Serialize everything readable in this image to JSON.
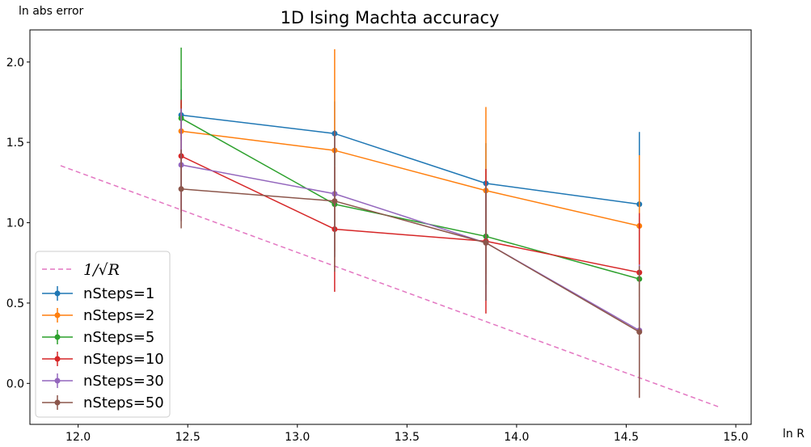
{
  "chart_data": {
    "type": "line",
    "title": "1D Ising Machta accuracy",
    "xlabel": "ln R",
    "ylabel": "ln abs error",
    "xlim": [
      11.78,
      15.07
    ],
    "ylim": [
      -0.255,
      2.2
    ],
    "xticks": [
      "12.0",
      "12.5",
      "13.0",
      "13.5",
      "14.0",
      "14.5",
      "15.0"
    ],
    "xtick_values": [
      12.0,
      12.5,
      13.0,
      13.5,
      14.0,
      14.5,
      15.0
    ],
    "yticks": [
      "0.0",
      "0.5",
      "1.0",
      "1.5",
      "2.0"
    ],
    "ytick_values": [
      0.0,
      0.5,
      1.0,
      1.5,
      2.0
    ],
    "legend_position": "lower-left",
    "reference_line": {
      "name": "1/√R",
      "color": "#e377c2",
      "x": [
        11.92,
        14.92
      ],
      "y": [
        1.355,
        -0.145
      ]
    },
    "x": [
      12.47,
      13.17,
      13.86,
      14.56
    ],
    "series": [
      {
        "name": "nSteps=1",
        "color": "#1f77b4",
        "y": [
          1.67,
          1.555,
          1.245,
          1.115
        ],
        "err": [
          0.16,
          0.2,
          0.25,
          0.45
        ]
      },
      {
        "name": "nSteps=2",
        "color": "#ff7f0e",
        "y": [
          1.57,
          1.45,
          1.2,
          0.98
        ],
        "err": [
          0.18,
          0.63,
          0.52,
          0.44
        ]
      },
      {
        "name": "nSteps=5",
        "color": "#2ca02c",
        "y": [
          1.65,
          1.115,
          0.915,
          0.65
        ],
        "err": [
          0.44,
          0.33,
          0.3,
          0.38
        ]
      },
      {
        "name": "nSteps=10",
        "color": "#d62728",
        "y": [
          1.415,
          0.96,
          0.885,
          0.69
        ],
        "err": [
          0.35,
          0.39,
          0.45,
          0.37
        ]
      },
      {
        "name": "nSteps=30",
        "color": "#9467bd",
        "y": [
          1.36,
          1.18,
          0.875,
          0.33
        ],
        "err": [
          0.35,
          0.39,
          0.36,
          0.41
        ]
      },
      {
        "name": "nSteps=50",
        "color": "#8c564b",
        "y": [
          1.21,
          1.135,
          0.875,
          0.32
        ],
        "err": [
          0.245,
          0.44,
          0.36,
          0.41
        ]
      }
    ]
  }
}
